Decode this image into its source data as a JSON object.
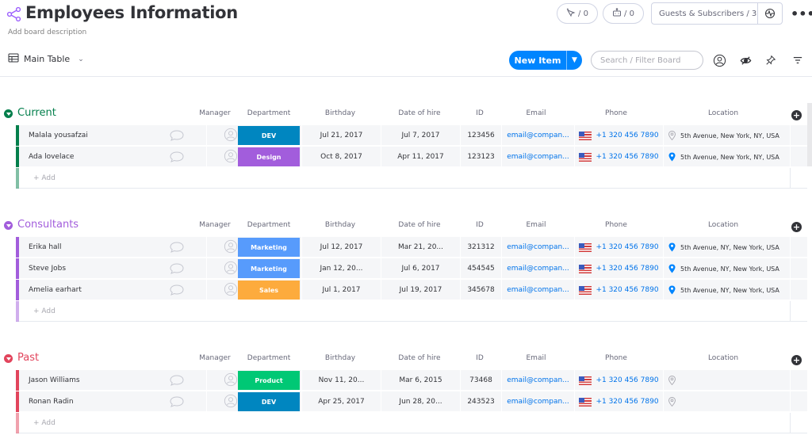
{
  "header": {
    "title": "Employees Information",
    "description": "Add board description",
    "activity_count": "/ 0",
    "updates_count": "/ 0",
    "guests_label": "Guests & Subscribers / 3",
    "more_label": "•••"
  },
  "toolbar": {
    "view_label": "Main Table",
    "new_item_label": "New Item",
    "search_placeholder": "Search / Filter Board"
  },
  "columns": {
    "manager": "Manager",
    "department": "Department",
    "birthday": "Birthday",
    "hire": "Date of hire",
    "id": "ID",
    "email": "Email",
    "phone": "Phone",
    "location": "Location"
  },
  "add_row_label": "+ Add",
  "groups": [
    {
      "title": "Current",
      "color": "#037f4c",
      "rows": [
        {
          "name": "Malala yousafzai",
          "department": "DEV",
          "dept_color": "#0086c0",
          "birthday": "Jul 21, 2017",
          "hire": "Jul 7, 2017",
          "id": "123456",
          "email": "email@compan...",
          "phone": "+1 320 456 7890",
          "location": "5th Avenue, New York, NY, USA",
          "pin_active": false
        },
        {
          "name": "Ada lovelace",
          "department": "Design",
          "dept_color": "#a25ddc",
          "birthday": "Oct 8, 2017",
          "hire": "Apr 11, 2017",
          "id": "123123",
          "email": "email@compan...",
          "phone": "+1 320 456 7890",
          "location": "5th Avenue, New York, NY, USA",
          "pin_active": true
        }
      ]
    },
    {
      "title": "Consultants",
      "color": "#a25ddc",
      "rows": [
        {
          "name": "Erika hall",
          "department": "Marketing",
          "dept_color": "#579bfc",
          "birthday": "Jul 12, 2017",
          "hire": "Mar 21, 20...",
          "id": "321312",
          "email": "email@compan...",
          "phone": "+1 320 456 7890",
          "location": "5th Avenue, NY, New York, USA",
          "pin_active": true
        },
        {
          "name": "Steve Jobs",
          "department": "Marketing",
          "dept_color": "#579bfc",
          "birthday": "Jan 12, 20...",
          "hire": "Jul 6, 2017",
          "id": "454545",
          "email": "email@compan...",
          "phone": "+1 320 456 7890",
          "location": "5th Avenue, NY, New York, USA",
          "pin_active": true
        },
        {
          "name": "Amelia earhart",
          "department": "Sales",
          "dept_color": "#fdab3d",
          "birthday": "Jul 1, 2017",
          "hire": "Jul 19, 2017",
          "id": "345678",
          "email": "email@compan...",
          "phone": "+1 320 456 7890",
          "location": "5th Avenue, NY, New York, USA",
          "pin_active": true
        }
      ]
    },
    {
      "title": "Past",
      "color": "#e2445c",
      "rows": [
        {
          "name": "Jason Williams",
          "department": "Product",
          "dept_color": "#00c875",
          "birthday": "Nov 11, 20...",
          "hire": "Mar 6, 2015",
          "id": "73468",
          "email": "email@compan...",
          "phone": "+1 320 456 7890",
          "location": "",
          "pin_active": false
        },
        {
          "name": "Ronan Radin",
          "department": "DEV",
          "dept_color": "#0086c0",
          "birthday": "Apr 25, 2017",
          "hire": "Jun 28, 20...",
          "id": "243523",
          "email": "email@compan...",
          "phone": "+1 320 456 7890",
          "location": "",
          "pin_active": false
        }
      ]
    }
  ]
}
